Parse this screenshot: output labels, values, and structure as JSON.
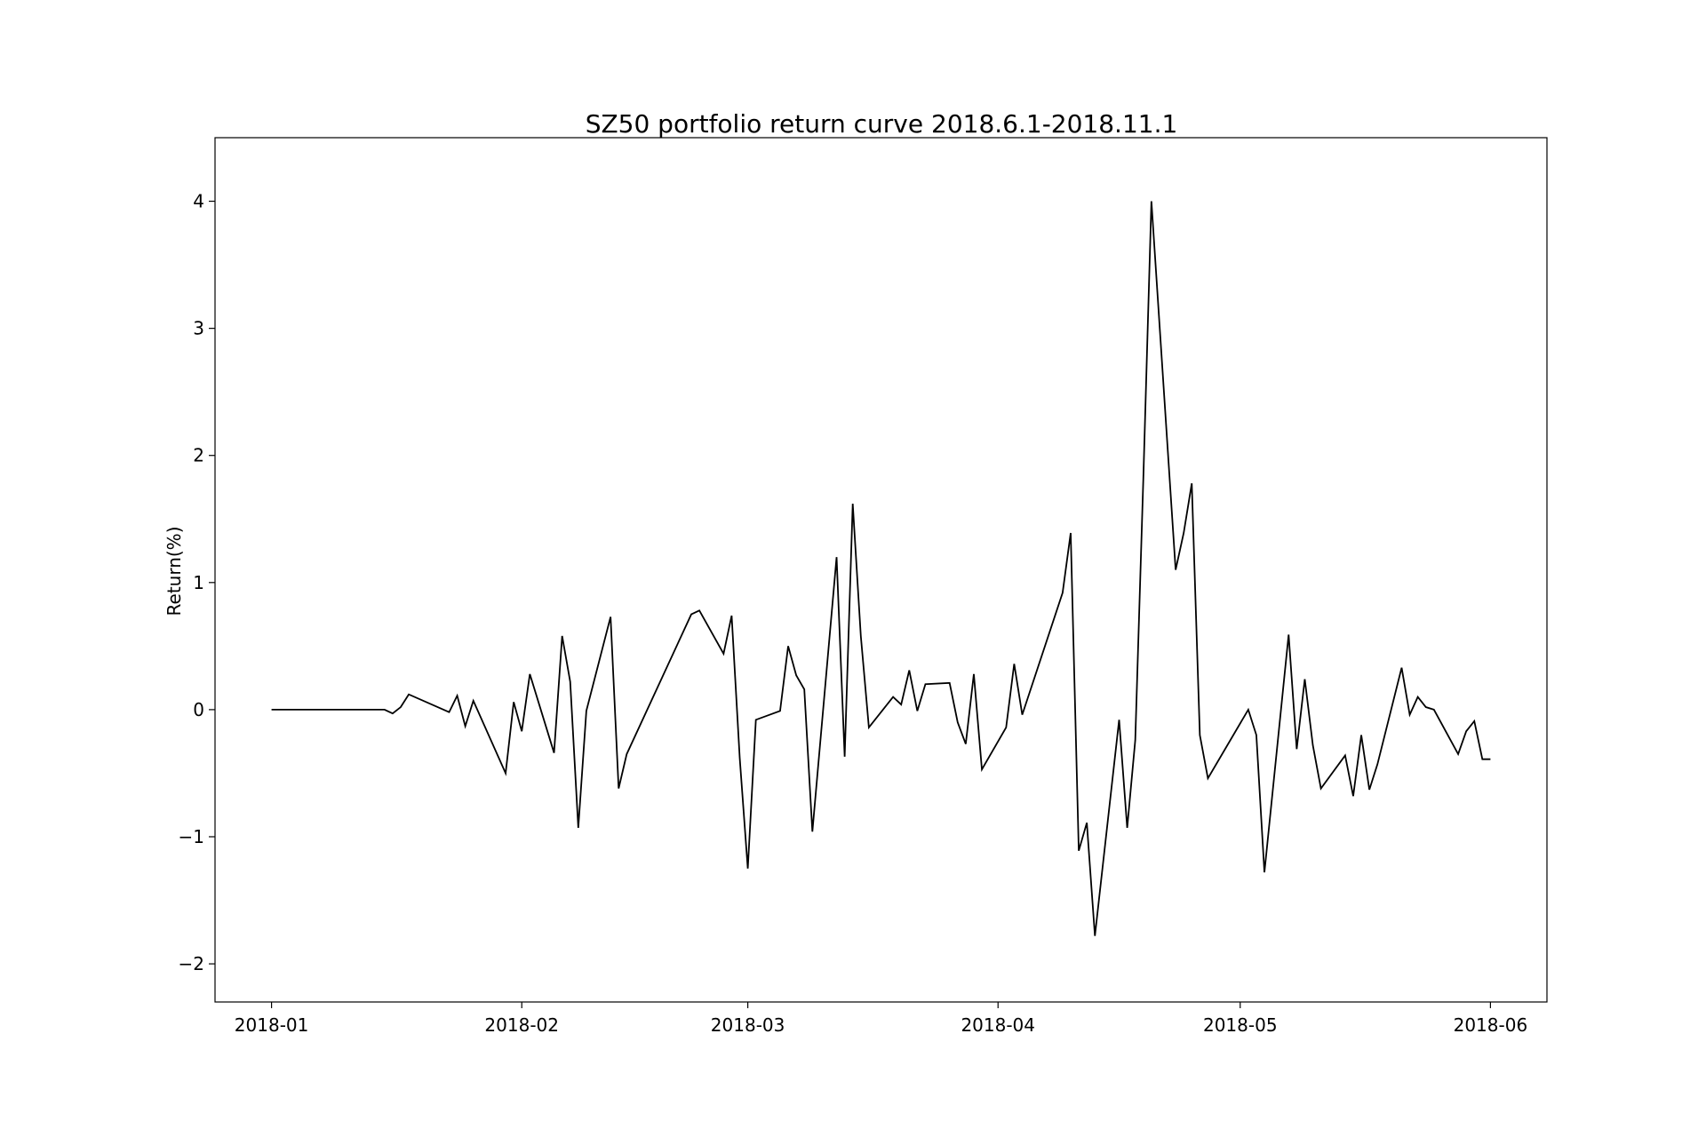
{
  "chart_data": {
    "type": "line",
    "title": "SZ50 portfolio return curve   2018.6.1-2018.11.1",
    "xlabel": "",
    "ylabel": "Return(%)",
    "xlim": [
      "2017-12-25",
      "2018-06-08"
    ],
    "ylim": [
      -2.3,
      4.5
    ],
    "grid": false,
    "x_ticks": [
      "2018-01",
      "2018-02",
      "2018-03",
      "2018-04",
      "2018-05",
      "2018-06"
    ],
    "x_tick_dates": [
      "2018-01-01",
      "2018-02-01",
      "2018-03-01",
      "2018-04-01",
      "2018-05-01",
      "2018-06-01"
    ],
    "y_ticks": [
      -2,
      -1,
      0,
      1,
      2,
      3,
      4
    ],
    "y_tick_labels": [
      "−2",
      "−1",
      "0",
      "1",
      "2",
      "3",
      "4"
    ],
    "series": [
      {
        "color": "#000000",
        "x": [
          "2018-01-01",
          "2018-01-15",
          "2018-01-16",
          "2018-01-17",
          "2018-01-18",
          "2018-01-23",
          "2018-01-24",
          "2018-01-25",
          "2018-01-26",
          "2018-01-30",
          "2018-01-31",
          "2018-02-01",
          "2018-02-02",
          "2018-02-05",
          "2018-02-06",
          "2018-02-07",
          "2018-02-08",
          "2018-02-09",
          "2018-02-12",
          "2018-02-13",
          "2018-02-14",
          "2018-02-22",
          "2018-02-23",
          "2018-02-26",
          "2018-02-27",
          "2018-02-28",
          "2018-03-01",
          "2018-03-02",
          "2018-03-05",
          "2018-03-06",
          "2018-03-07",
          "2018-03-08",
          "2018-03-09",
          "2018-03-12",
          "2018-03-13",
          "2018-03-14",
          "2018-03-15",
          "2018-03-16",
          "2018-03-19",
          "2018-03-20",
          "2018-03-21",
          "2018-03-22",
          "2018-03-23",
          "2018-03-26",
          "2018-03-27",
          "2018-03-28",
          "2018-03-29",
          "2018-03-30",
          "2018-04-02",
          "2018-04-03",
          "2018-04-04",
          "2018-04-09",
          "2018-04-10",
          "2018-04-11",
          "2018-04-12",
          "2018-04-13",
          "2018-04-16",
          "2018-04-17",
          "2018-04-18",
          "2018-04-19",
          "2018-04-20",
          "2018-04-23",
          "2018-04-24",
          "2018-04-25",
          "2018-04-26",
          "2018-04-27",
          "2018-05-02",
          "2018-05-03",
          "2018-05-04",
          "2018-05-07",
          "2018-05-08",
          "2018-05-09",
          "2018-05-10",
          "2018-05-11",
          "2018-05-14",
          "2018-05-15",
          "2018-05-16",
          "2018-05-17",
          "2018-05-18",
          "2018-05-21",
          "2018-05-22",
          "2018-05-23",
          "2018-05-24",
          "2018-05-25",
          "2018-05-28",
          "2018-05-29",
          "2018-05-30",
          "2018-05-31",
          "2018-06-01"
        ],
        "y": [
          0.0,
          0.0,
          -0.03,
          0.02,
          0.12,
          -0.02,
          0.11,
          -0.13,
          0.07,
          -0.5,
          0.06,
          -0.17,
          0.28,
          -0.34,
          0.58,
          0.22,
          -0.93,
          -0.01,
          0.73,
          -0.62,
          -0.35,
          0.75,
          0.78,
          0.44,
          0.74,
          -0.38,
          -1.25,
          -0.08,
          -0.01,
          0.5,
          0.27,
          0.16,
          -0.96,
          1.2,
          -0.37,
          1.62,
          0.58,
          -0.14,
          0.1,
          0.04,
          0.31,
          -0.01,
          0.2,
          0.21,
          -0.1,
          -0.27,
          0.28,
          -0.47,
          -0.14,
          0.36,
          -0.04,
          0.92,
          1.39,
          -1.11,
          -0.89,
          -1.78,
          -0.08,
          -0.93,
          -0.24,
          1.82,
          4.0,
          1.1,
          1.39,
          1.78,
          -0.2,
          -0.54,
          0.0,
          -0.2,
          -1.28,
          0.59,
          -0.31,
          0.24,
          -0.28,
          -0.62,
          -0.36,
          -0.68,
          -0.2,
          -0.63,
          -0.43,
          0.33,
          -0.04,
          0.1,
          0.02,
          0.0,
          -0.35,
          -0.17,
          -0.09,
          -0.39,
          -0.39
        ]
      }
    ]
  }
}
